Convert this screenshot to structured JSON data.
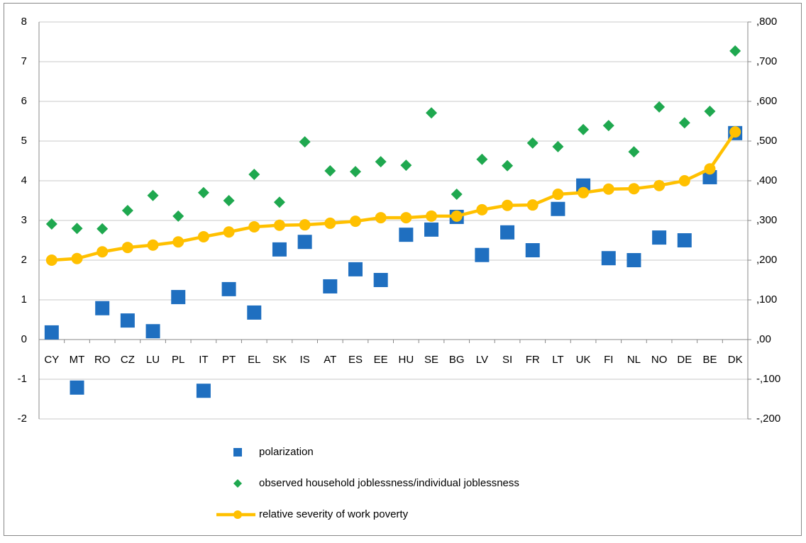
{
  "chart_data": {
    "type": "combo",
    "categories": [
      "CY",
      "MT",
      "RO",
      "CZ",
      "LU",
      "PL",
      "IT",
      "PT",
      "EL",
      "SK",
      "IS",
      "AT",
      "ES",
      "EE",
      "HU",
      "SE",
      "BG",
      "LV",
      "SI",
      "FR",
      "LT",
      "UK",
      "FI",
      "NL",
      "NO",
      "DE",
      "BE",
      "DK"
    ],
    "series": [
      {
        "name": "polarization",
        "type": "scatter",
        "marker": "square",
        "color": "#1f6fc0",
        "values": [
          0.18,
          -1.21,
          0.79,
          0.48,
          0.21,
          1.07,
          -1.29,
          1.27,
          0.68,
          2.27,
          2.46,
          1.34,
          1.77,
          1.5,
          2.64,
          2.77,
          3.09,
          2.13,
          2.7,
          2.25,
          3.29,
          3.88,
          2.05,
          2.0,
          2.57,
          2.5,
          4.09,
          5.2
        ]
      },
      {
        "name": "observed household joblessness/individual joblessness",
        "type": "scatter",
        "marker": "diamond",
        "color": "#1fa84f",
        "values": [
          2.91,
          2.8,
          2.79,
          3.25,
          3.63,
          3.11,
          3.7,
          3.5,
          4.16,
          3.46,
          4.98,
          4.25,
          4.23,
          4.48,
          4.39,
          5.71,
          3.66,
          4.54,
          4.38,
          4.95,
          4.86,
          5.29,
          5.39,
          4.73,
          5.86,
          5.46,
          5.75,
          7.27
        ]
      },
      {
        "name": "relative severity of work poverty",
        "type": "line",
        "marker": "circle",
        "color": "#ffc000",
        "axis": "y2",
        "values": [
          0.2,
          0.204,
          0.221,
          0.232,
          0.238,
          0.246,
          0.259,
          0.271,
          0.284,
          0.288,
          0.289,
          0.293,
          0.298,
          0.307,
          0.307,
          0.311,
          0.311,
          0.327,
          0.338,
          0.339,
          0.366,
          0.37,
          0.379,
          0.38,
          0.388,
          0.4,
          0.43,
          0.523
        ]
      }
    ],
    "ylim": [
      -2,
      8
    ],
    "yticks": [
      -2,
      -1,
      0,
      1,
      2,
      3,
      4,
      5,
      6,
      7,
      8
    ],
    "y2lim": [
      -0.2,
      0.8
    ],
    "y2ticks": [
      {
        "value": -0.2,
        "label": "-,200"
      },
      {
        "value": -0.1,
        "label": "-,100"
      },
      {
        "value": 0,
        "label": ",00"
      },
      {
        "value": 0.1,
        "label": ",100"
      },
      {
        "value": 0.2,
        "label": ",200"
      },
      {
        "value": 0.3,
        "label": ",300"
      },
      {
        "value": 0.4,
        "label": ",400"
      },
      {
        "value": 0.5,
        "label": ",500"
      },
      {
        "value": 0.6,
        "label": ",600"
      },
      {
        "value": 0.7,
        "label": ",700"
      },
      {
        "value": 0.8,
        "label": ",800"
      }
    ],
    "grid": true,
    "legend": "bottom"
  }
}
